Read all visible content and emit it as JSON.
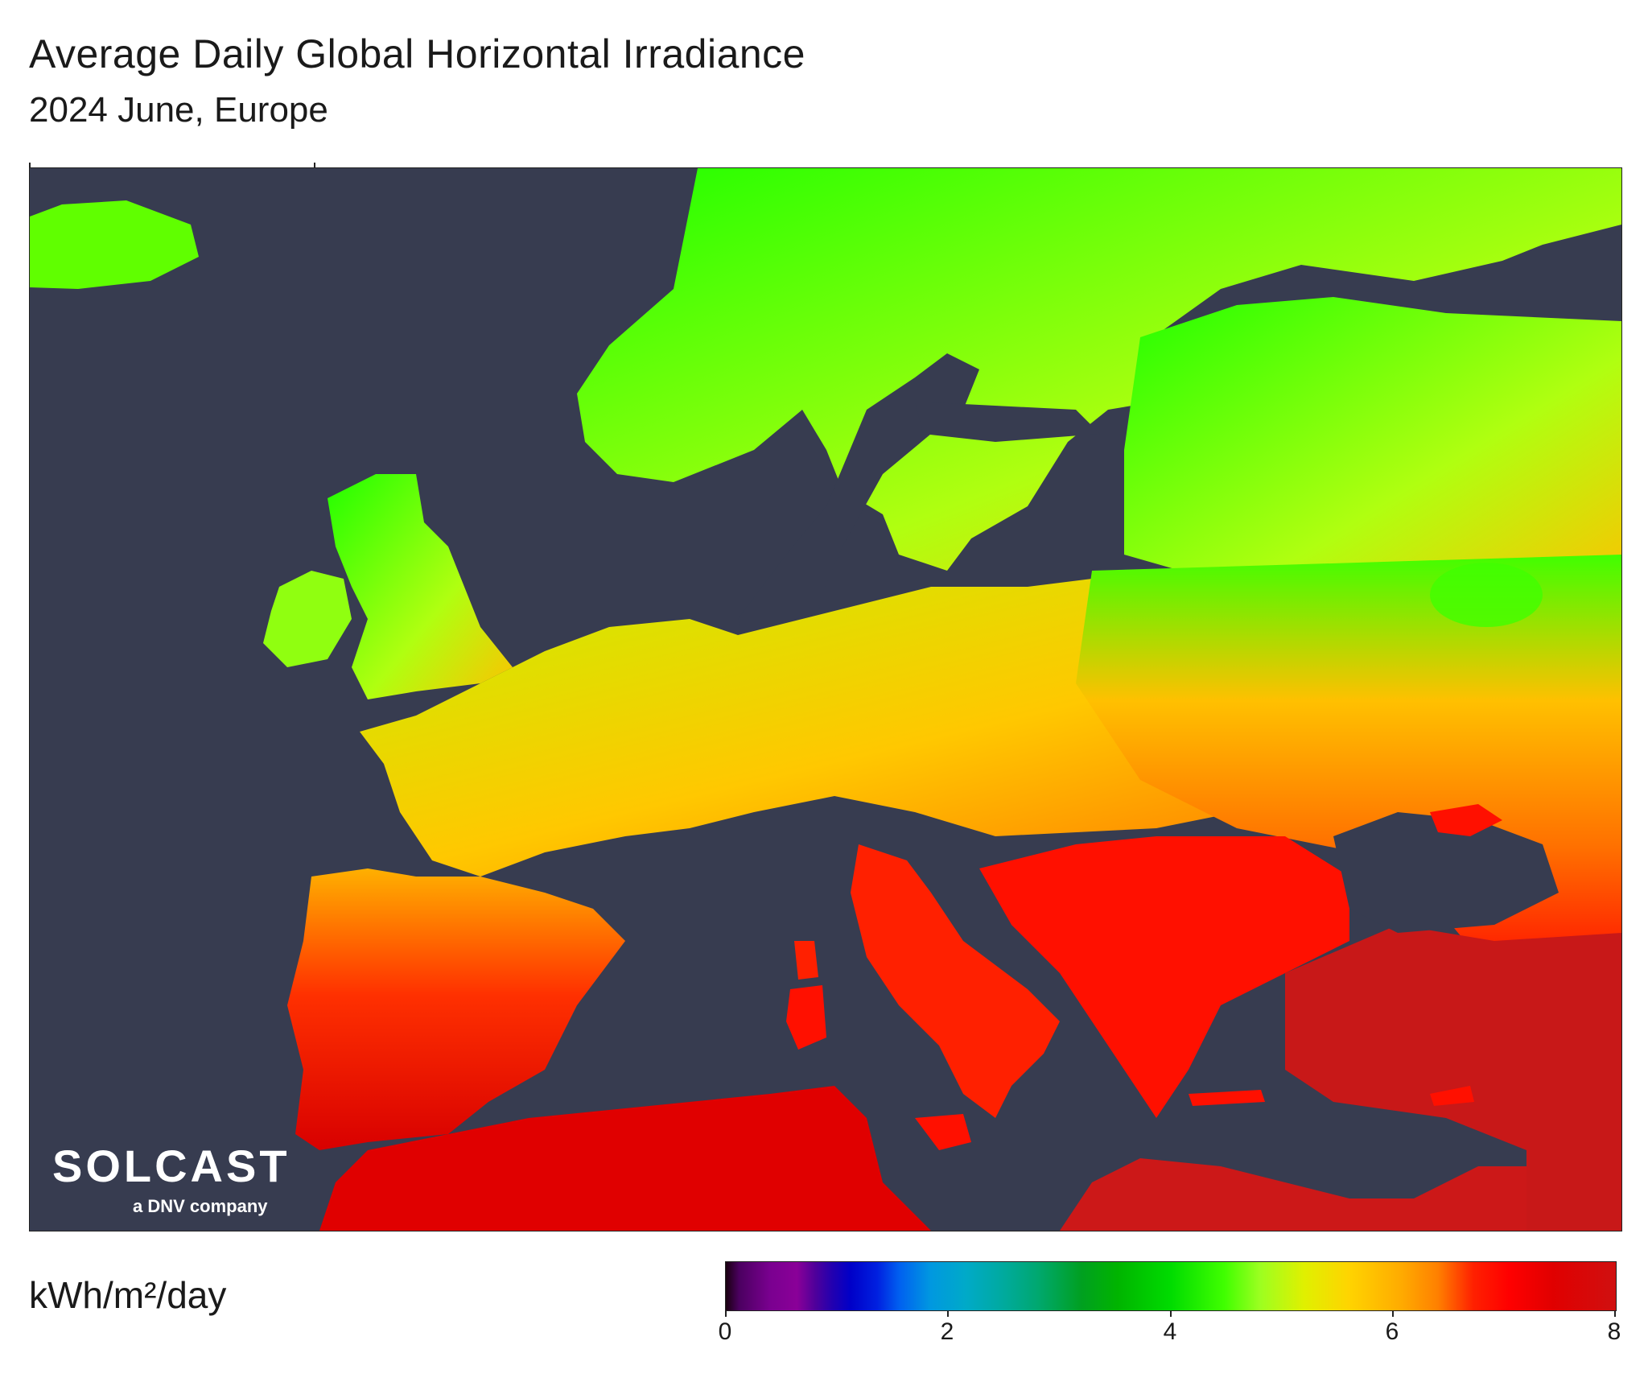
{
  "title": "Average Daily Global Horizontal Irradiance",
  "subtitle": "2024 June, Europe",
  "logo": {
    "wordmark": "SOLCAST",
    "tagline": "a DNV company"
  },
  "colorbar": {
    "unit": "kWh/m²/day",
    "min": 0,
    "max": 8,
    "ticks": [
      "0",
      "2",
      "4",
      "6",
      "8"
    ]
  },
  "colors": {
    "ocean": "#373c50",
    "low": "#00ff00",
    "mid": "#ffd000",
    "high": "#e00000"
  }
}
